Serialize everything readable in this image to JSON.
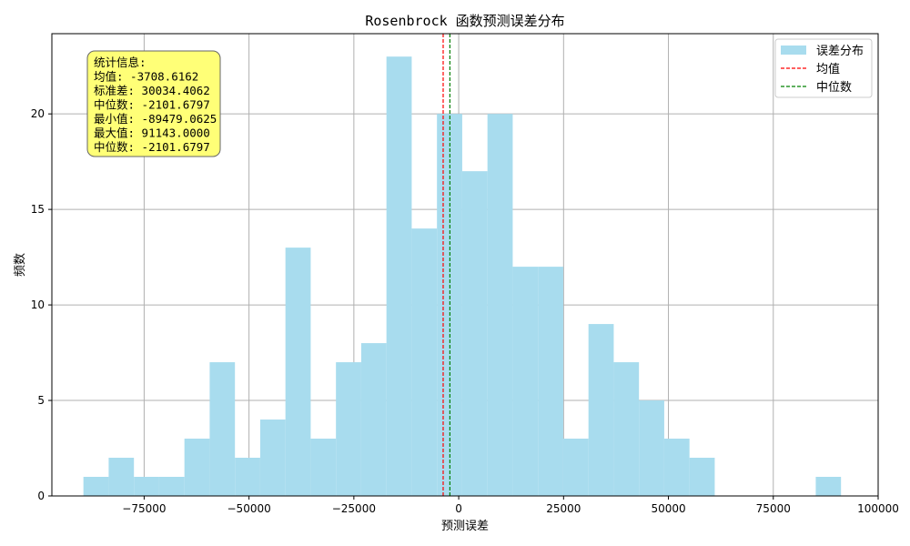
{
  "chart_data": {
    "type": "bar",
    "title": "Rosenbrock 函数预测误差分布",
    "xlabel": "预测误差",
    "ylabel": "频数",
    "xlim": [
      -97000,
      100000
    ],
    "ylim": [
      0,
      24.2
    ],
    "xticks": [
      -75000,
      -50000,
      -25000,
      0,
      25000,
      50000,
      75000,
      100000
    ],
    "xtick_labels": [
      "−75000",
      "−50000",
      "−25000",
      "0",
      "25000",
      "50000",
      "75000",
      "100000"
    ],
    "yticks": [
      0,
      5,
      10,
      15,
      20
    ],
    "ytick_labels": [
      "0",
      "5",
      "10",
      "15",
      "20"
    ],
    "grid": true,
    "bin_start": -89479.0625,
    "bin_width": 6020.7354,
    "counts": [
      1,
      2,
      1,
      1,
      3,
      7,
      2,
      4,
      13,
      3,
      7,
      8,
      23,
      14,
      20,
      17,
      20,
      12,
      12,
      3,
      9,
      7,
      5,
      3,
      2,
      0,
      0,
      0,
      0,
      1
    ],
    "bar_color": "#a8dcee",
    "mean": -3708.6162,
    "median": -2101.6797,
    "mean_color": "#ff0000",
    "median_color": "#008000",
    "legend": {
      "placement": "top-right",
      "entries": [
        "误差分布",
        "均值",
        "中位数"
      ]
    },
    "stats_box": {
      "lines": [
        "统计信息:",
        "均值: -3708.6162",
        "标准差: 30034.4062",
        "中位数: -2101.6797",
        "最小值: -89479.0625",
        "最大值: 91143.0000",
        "中位数: -2101.6797"
      ],
      "background": "#ffff77"
    }
  }
}
